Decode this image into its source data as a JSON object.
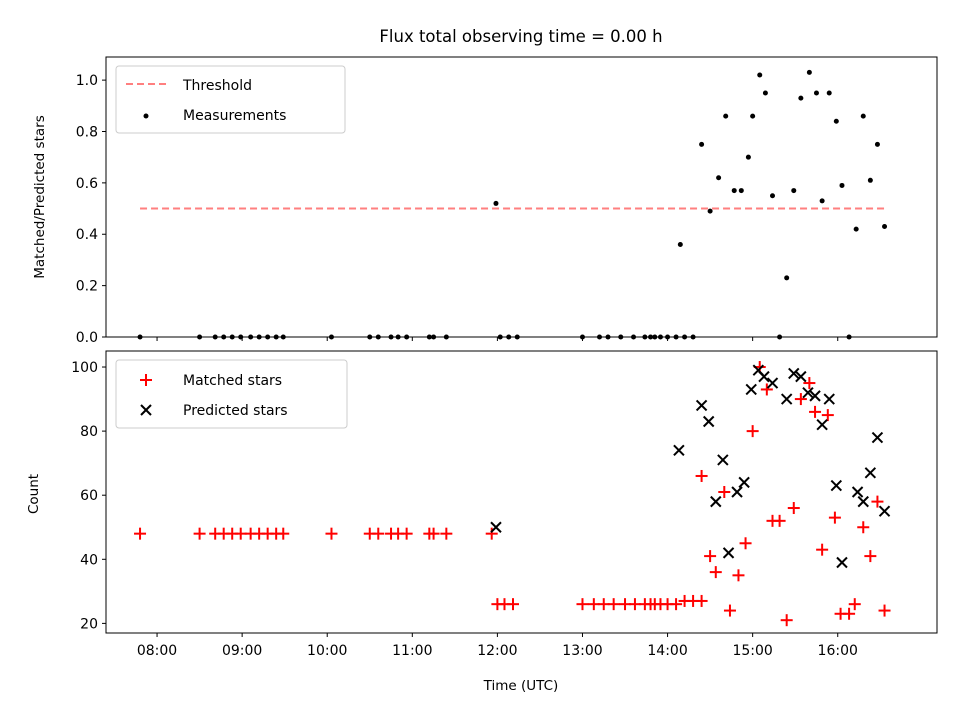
{
  "chart_data": [
    {
      "type": "scatter",
      "title": "Flux total observing time = 0.00 h",
      "xlabel": "",
      "ylabel": "Matched/Predicted stars",
      "x_range_hours": [
        "07:24",
        "17:10"
      ],
      "ylim": [
        0,
        1.09
      ],
      "yticks": [
        0.0,
        0.2,
        0.4,
        0.6,
        0.8,
        1.0
      ],
      "ytick_labels": [
        "0.0",
        "0.2",
        "0.4",
        "0.6",
        "0.8",
        "1.0"
      ],
      "grid": false,
      "legend_position": "upper left",
      "threshold": {
        "name": "Threshold",
        "color": "#ff7f7f",
        "value": 0.5,
        "x_start": "07:48",
        "x_end": "16:35"
      },
      "series": [
        {
          "name": "Measurements",
          "color": "#000000",
          "marker": "dot",
          "points": [
            [
              "07:48",
              0
            ],
            [
              "08:30",
              0
            ],
            [
              "08:41",
              0
            ],
            [
              "08:47",
              0
            ],
            [
              "08:53",
              0
            ],
            [
              "08:59",
              0
            ],
            [
              "09:06",
              0
            ],
            [
              "09:12",
              0
            ],
            [
              "09:18",
              0
            ],
            [
              "09:24",
              0
            ],
            [
              "09:29",
              0
            ],
            [
              "10:03",
              0
            ],
            [
              "10:30",
              0
            ],
            [
              "10:36",
              0
            ],
            [
              "10:45",
              0
            ],
            [
              "10:50",
              0
            ],
            [
              "10:56",
              0
            ],
            [
              "11:12",
              0
            ],
            [
              "11:15",
              0
            ],
            [
              "11:24",
              0
            ],
            [
              "11:59",
              0.52
            ],
            [
              "12:02",
              0
            ],
            [
              "12:08",
              0
            ],
            [
              "12:14",
              0
            ],
            [
              "13:00",
              0
            ],
            [
              "13:12",
              0
            ],
            [
              "13:18",
              0
            ],
            [
              "13:27",
              0
            ],
            [
              "13:36",
              0
            ],
            [
              "13:44",
              0
            ],
            [
              "13:48",
              0
            ],
            [
              "13:51",
              0
            ],
            [
              "13:55",
              0
            ],
            [
              "14:00",
              0
            ],
            [
              "14:06",
              0
            ],
            [
              "14:09",
              0.36
            ],
            [
              "14:12",
              0
            ],
            [
              "14:18",
              0
            ],
            [
              "14:24",
              0.75
            ],
            [
              "14:30",
              0.49
            ],
            [
              "14:36",
              0.62
            ],
            [
              "14:41",
              0.86
            ],
            [
              "14:47",
              0.57
            ],
            [
              "14:52",
              0.57
            ],
            [
              "14:57",
              0.7
            ],
            [
              "15:00",
              0.86
            ],
            [
              "15:05",
              1.02
            ],
            [
              "15:09",
              0.95
            ],
            [
              "15:14",
              0.55
            ],
            [
              "15:19",
              0
            ],
            [
              "15:24",
              0.23
            ],
            [
              "15:29",
              0.57
            ],
            [
              "15:34",
              0.93
            ],
            [
              "15:40",
              1.03
            ],
            [
              "15:45",
              0.95
            ],
            [
              "15:49",
              0.53
            ],
            [
              "15:54",
              0.95
            ],
            [
              "15:59",
              0.84
            ],
            [
              "16:03",
              0.59
            ],
            [
              "16:08",
              0
            ],
            [
              "16:13",
              0.42
            ],
            [
              "16:18",
              0.86
            ],
            [
              "16:23",
              0.61
            ],
            [
              "16:28",
              0.75
            ],
            [
              "16:33",
              0.43
            ]
          ]
        }
      ]
    },
    {
      "type": "scatter",
      "title": "",
      "xlabel": "Time (UTC)",
      "ylabel": "Count",
      "x_range_hours": [
        "07:24",
        "17:10"
      ],
      "ylim": [
        17,
        105
      ],
      "yticks": [
        20,
        40,
        60,
        80,
        100
      ],
      "ytick_labels": [
        "20",
        "40",
        "60",
        "80",
        "100"
      ],
      "xtick_labels": [
        "08:00",
        "09:00",
        "10:00",
        "11:00",
        "12:00",
        "13:00",
        "14:00",
        "15:00",
        "16:00"
      ],
      "grid": false,
      "legend_position": "upper left",
      "series": [
        {
          "name": "Matched stars",
          "color": "#ff0000",
          "marker": "plus",
          "points": [
            [
              "07:48",
              48
            ],
            [
              "08:30",
              48
            ],
            [
              "08:41",
              48
            ],
            [
              "08:47",
              48
            ],
            [
              "08:53",
              48
            ],
            [
              "08:59",
              48
            ],
            [
              "09:06",
              48
            ],
            [
              "09:12",
              48
            ],
            [
              "09:18",
              48
            ],
            [
              "09:24",
              48
            ],
            [
              "09:29",
              48
            ],
            [
              "10:03",
              48
            ],
            [
              "10:30",
              48
            ],
            [
              "10:36",
              48
            ],
            [
              "10:45",
              48
            ],
            [
              "10:50",
              48
            ],
            [
              "10:56",
              48
            ],
            [
              "11:12",
              48
            ],
            [
              "11:15",
              48
            ],
            [
              "11:24",
              48
            ],
            [
              "11:56",
              48
            ],
            [
              "12:00",
              26
            ],
            [
              "12:05",
              26
            ],
            [
              "12:11",
              26
            ],
            [
              "13:00",
              26
            ],
            [
              "13:08",
              26
            ],
            [
              "13:15",
              26
            ],
            [
              "13:22",
              26
            ],
            [
              "13:30",
              26
            ],
            [
              "13:37",
              26
            ],
            [
              "13:44",
              26
            ],
            [
              "13:48",
              26
            ],
            [
              "13:51",
              26
            ],
            [
              "13:55",
              26
            ],
            [
              "14:00",
              26
            ],
            [
              "14:06",
              26
            ],
            [
              "14:12",
              27
            ],
            [
              "14:18",
              27
            ],
            [
              "14:24",
              27
            ],
            [
              "14:24",
              66
            ],
            [
              "14:30",
              41
            ],
            [
              "14:34",
              36
            ],
            [
              "14:40",
              61
            ],
            [
              "14:44",
              24
            ],
            [
              "14:50",
              35
            ],
            [
              "14:55",
              45
            ],
            [
              "15:00",
              80
            ],
            [
              "15:05",
              100
            ],
            [
              "15:10",
              93
            ],
            [
              "15:14",
              52
            ],
            [
              "15:19",
              52
            ],
            [
              "15:24",
              21
            ],
            [
              "15:29",
              56
            ],
            [
              "15:34",
              90
            ],
            [
              "15:40",
              95
            ],
            [
              "15:44",
              86
            ],
            [
              "15:49",
              43
            ],
            [
              "15:53",
              85
            ],
            [
              "15:58",
              53
            ],
            [
              "16:02",
              23
            ],
            [
              "16:08",
              23
            ],
            [
              "16:12",
              26
            ],
            [
              "16:18",
              50
            ],
            [
              "16:23",
              41
            ],
            [
              "16:28",
              58
            ],
            [
              "16:33",
              24
            ]
          ]
        },
        {
          "name": "Predicted stars",
          "color": "#000000",
          "marker": "x",
          "points": [
            [
              "11:59",
              50
            ],
            [
              "14:08",
              74
            ],
            [
              "14:24",
              88
            ],
            [
              "14:29",
              83
            ],
            [
              "14:34",
              58
            ],
            [
              "14:39",
              71
            ],
            [
              "14:43",
              42
            ],
            [
              "14:49",
              61
            ],
            [
              "14:54",
              64
            ],
            [
              "14:59",
              93
            ],
            [
              "15:04",
              99
            ],
            [
              "15:08",
              97
            ],
            [
              "15:14",
              95
            ],
            [
              "15:24",
              90
            ],
            [
              "15:29",
              98
            ],
            [
              "15:34",
              97
            ],
            [
              "15:39",
              92
            ],
            [
              "15:44",
              91
            ],
            [
              "15:49",
              82
            ],
            [
              "15:54",
              90
            ],
            [
              "15:59",
              63
            ],
            [
              "16:03",
              39
            ],
            [
              "16:14",
              61
            ],
            [
              "16:18",
              58
            ],
            [
              "16:23",
              67
            ],
            [
              "16:28",
              78
            ],
            [
              "16:33",
              55
            ]
          ]
        }
      ]
    }
  ]
}
